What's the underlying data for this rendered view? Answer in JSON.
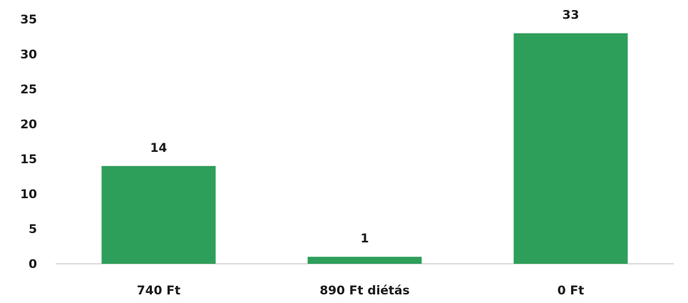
{
  "chart_data": {
    "type": "bar",
    "categories": [
      "740 Ft",
      "890 Ft diétás",
      "0 Ft"
    ],
    "values": [
      14,
      1,
      33
    ],
    "data_labels": [
      "14",
      "1",
      "33"
    ],
    "ylim": [
      0,
      35
    ],
    "yticks": [
      0,
      5,
      10,
      15,
      20,
      25,
      30,
      35
    ],
    "ytick_labels": [
      "0",
      "5",
      "10",
      "15",
      "20",
      "25",
      "30",
      "35"
    ],
    "grid": false,
    "legend": "none",
    "title": "",
    "xlabel": "",
    "ylabel": "",
    "colors": {
      "bar": "#2e9e5b",
      "axis": "#d0d0d0",
      "text": "#1a1a1a"
    }
  }
}
